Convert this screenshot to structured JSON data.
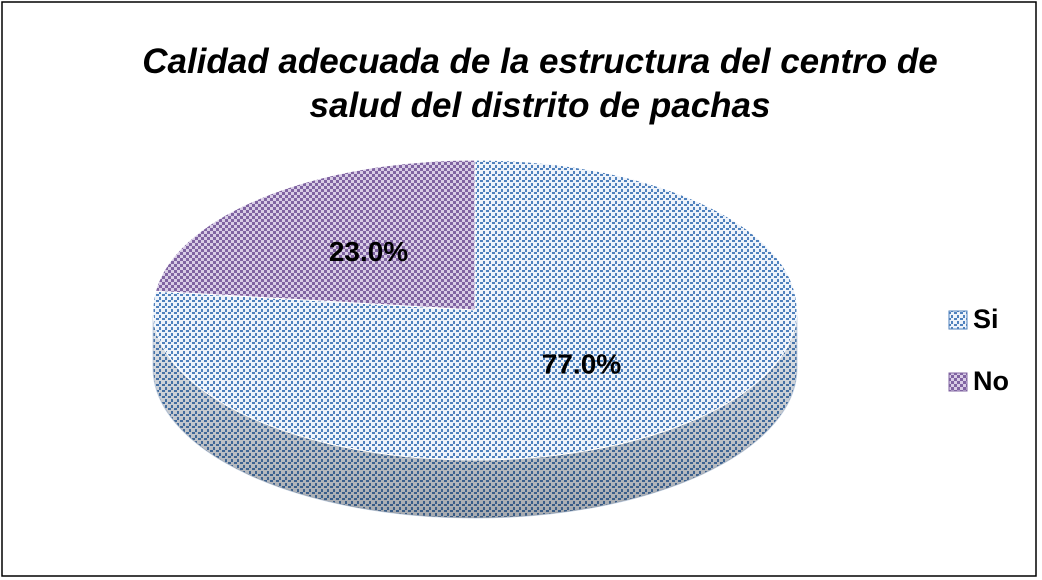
{
  "chart_data": {
    "type": "pie",
    "title": "Calidad adecuada de la estructura del centro de salud del distrito de pachas",
    "categories": [
      "Si",
      "No"
    ],
    "values": [
      77,
      23
    ],
    "value_labels": [
      "77.0%",
      "23.0%"
    ],
    "colors": [
      "#4f81bd",
      "#8064a2"
    ],
    "legend": "right"
  }
}
